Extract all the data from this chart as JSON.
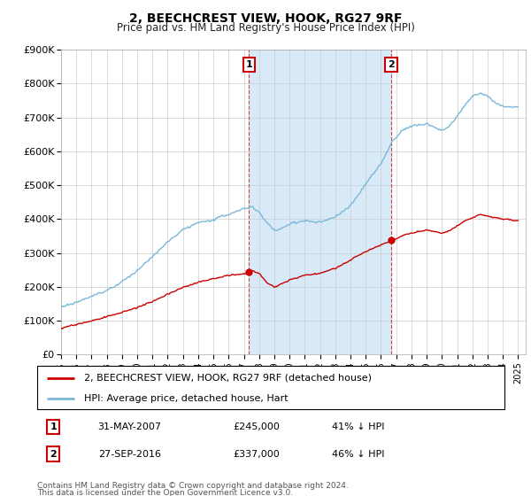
{
  "title": "2, BEECHCREST VIEW, HOOK, RG27 9RF",
  "subtitle": "Price paid vs. HM Land Registry's House Price Index (HPI)",
  "ylim": [
    0,
    900000
  ],
  "yticks": [
    0,
    100000,
    200000,
    300000,
    400000,
    500000,
    600000,
    700000,
    800000,
    900000
  ],
  "ytick_labels": [
    "£0",
    "£100K",
    "£200K",
    "£300K",
    "£400K",
    "£500K",
    "£600K",
    "£700K",
    "£800K",
    "£900K"
  ],
  "hpi_color": "#7ab8d9",
  "price_color": "#cc0000",
  "legend_line1": "2, BEECHCREST VIEW, HOOK, RG27 9RF (detached house)",
  "legend_line2": "HPI: Average price, detached house, Hart",
  "footnote1": "Contains HM Land Registry data © Crown copyright and database right 2024.",
  "footnote2": "This data is licensed under the Open Government Licence v3.0.",
  "table_row1": [
    "1",
    "31-MAY-2007",
    "£245,000",
    "41% ↓ HPI"
  ],
  "table_row2": [
    "2",
    "27-SEP-2016",
    "£337,000",
    "46% ↓ HPI"
  ],
  "shade_color": "#d8eaf7",
  "marker_box_color": "#cc0000",
  "bg_color": "#f0f4f8"
}
